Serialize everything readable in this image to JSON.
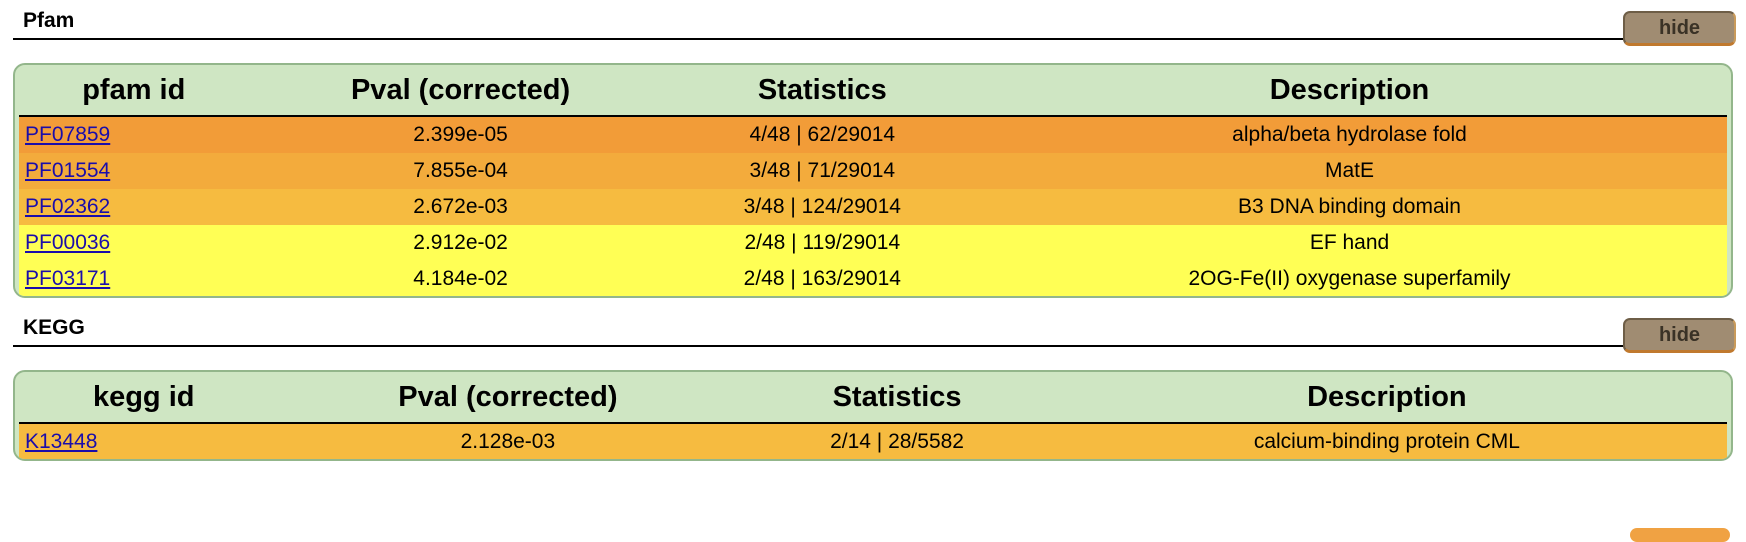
{
  "sections": [
    {
      "title": "Pfam",
      "hide_label": "hide",
      "headers": [
        "pfam id",
        "Pval (corrected)",
        "Statistics",
        "Description"
      ],
      "rows": [
        {
          "id": "PF07859",
          "pval": "2.399e-05",
          "stats": "4/48 | 62/29014",
          "desc": "alpha/beta hydrolase fold",
          "color": "#f29c38"
        },
        {
          "id": "PF01554",
          "pval": "7.855e-04",
          "stats": "3/48 | 71/29014",
          "desc": "MatE",
          "color": "#f3ab3c"
        },
        {
          "id": "PF02362",
          "pval": "2.672e-03",
          "stats": "3/48 | 124/29014",
          "desc": "B3 DNA binding domain",
          "color": "#f6bb40"
        },
        {
          "id": "PF00036",
          "pval": "2.912e-02",
          "stats": "2/48 | 119/29014",
          "desc": "EF hand",
          "color": "#ffff55"
        },
        {
          "id": "PF03171",
          "pval": "4.184e-02",
          "stats": "2/48 | 163/29014",
          "desc": "2OG-Fe(II) oxygenase superfamily",
          "color": "#ffff55"
        }
      ]
    },
    {
      "title": "KEGG",
      "hide_label": "hide",
      "headers": [
        "kegg id",
        "Pval (corrected)",
        "Statistics",
        "Description"
      ],
      "rows": [
        {
          "id": "K13448",
          "pval": "2.128e-03",
          "stats": "2/14 | 28/5582",
          "desc": "calcium-binding protein CML",
          "color": "#f6bb40"
        }
      ]
    }
  ],
  "colors": {
    "panel_bg": "#cfe6c3",
    "hide_button": "#a08c72",
    "link": "#1a0dab"
  }
}
